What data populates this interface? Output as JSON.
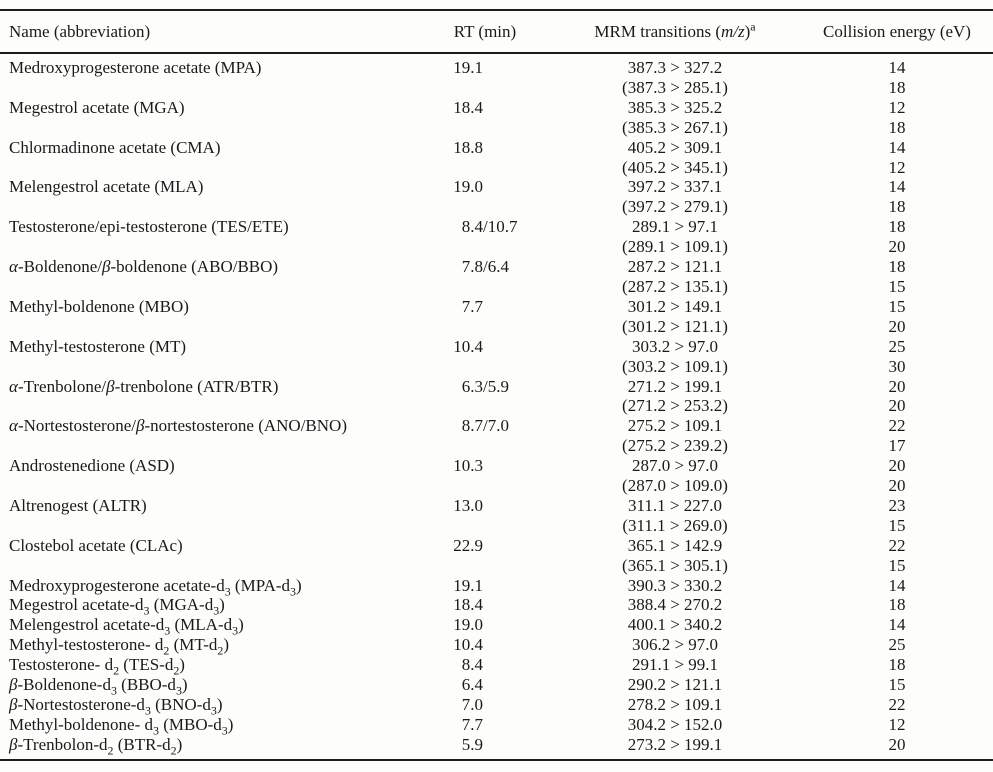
{
  "colors": {
    "background": "#fdfdfc",
    "text": "#1a1a1a",
    "rule": "#1c1c1c"
  },
  "table": {
    "columns": [
      {
        "key": "name",
        "label": "Name (abbreviation)"
      },
      {
        "key": "rt",
        "label": "RT (min)"
      },
      {
        "key": "mrm",
        "label": "MRM transitions (m/z)^a"
      },
      {
        "key": "ce",
        "label": "Collision energy (eV)"
      }
    ],
    "rows": [
      {
        "name": "Medroxyprogesterone acetate (MPA)",
        "rt": "19.1",
        "mrm": [
          "387.3 > 327.2",
          "(387.3 > 285.1)"
        ],
        "ce": [
          "14",
          "18"
        ]
      },
      {
        "name": "Megestrol acetate (MGA)",
        "rt": "18.4",
        "mrm": [
          "385.3 > 325.2",
          "(385.3 > 267.1)"
        ],
        "ce": [
          "12",
          "18"
        ]
      },
      {
        "name": "Chlormadinone acetate (CMA)",
        "rt": "18.8",
        "mrm": [
          "405.2 > 309.1",
          "(405.2 > 345.1)"
        ],
        "ce": [
          "14",
          "12"
        ]
      },
      {
        "name": "Melengestrol acetate (MLA)",
        "rt": "19.0",
        "mrm": [
          "397.2 > 337.1",
          "(397.2 > 279.1)"
        ],
        "ce": [
          "14",
          "18"
        ]
      },
      {
        "name": "Testosterone/epi-testosterone (TES/ETE)",
        "rt": "8.4/10.7",
        "mrm": [
          "289.1 > 97.1",
          "(289.1 > 109.1)"
        ],
        "ce": [
          "18",
          "20"
        ]
      },
      {
        "name": "α-Boldenone/β-boldenone (ABO/BBO)",
        "rt": "7.8/6.4",
        "mrm": [
          "287.2 > 121.1",
          "(287.2 > 135.1)"
        ],
        "ce": [
          "18",
          "15"
        ]
      },
      {
        "name": "Methyl-boldenone (MBO)",
        "rt": "7.7",
        "mrm": [
          "301.2 > 149.1",
          "(301.2 > 121.1)"
        ],
        "ce": [
          "15",
          "20"
        ]
      },
      {
        "name": "Methyl-testosterone (MT)",
        "rt": "10.4",
        "mrm": [
          "303.2 > 97.0",
          "(303.2 > 109.1)"
        ],
        "ce": [
          "25",
          "30"
        ]
      },
      {
        "name": "α-Trenbolone/β-trenbolone (ATR/BTR)",
        "rt": "6.3/5.9",
        "mrm": [
          "271.2 > 199.1",
          "(271.2 > 253.2)"
        ],
        "ce": [
          "20",
          "20"
        ]
      },
      {
        "name": "α-Nortestosterone/β-nortestosterone (ANO/BNO)",
        "rt": "8.7/7.0",
        "mrm": [
          "275.2 > 109.1",
          "(275.2 > 239.2)"
        ],
        "ce": [
          "22",
          "17"
        ]
      },
      {
        "name": "Androstenedione (ASD)",
        "rt": "10.3",
        "mrm": [
          "287.0 > 97.0",
          "(287.0 > 109.0)"
        ],
        "ce": [
          "20",
          "20"
        ]
      },
      {
        "name": "Altrenogest (ALTR)",
        "rt": "13.0",
        "mrm": [
          "311.1 > 227.0",
          "(311.1 > 269.0)"
        ],
        "ce": [
          "23",
          "15"
        ]
      },
      {
        "name": "Clostebol acetate (CLAc)",
        "rt": "22.9",
        "mrm": [
          "365.1 > 142.9",
          "(365.1 > 305.1)"
        ],
        "ce": [
          "22",
          "15"
        ]
      },
      {
        "name": "Medroxyprogesterone acetate-d₃ (MPA-d₃)",
        "rt": "19.1",
        "mrm": [
          "390.3 > 330.2"
        ],
        "ce": [
          "14"
        ]
      },
      {
        "name": "Megestrol acetate-d₃ (MGA-d₃)",
        "rt": "18.4",
        "mrm": [
          "388.4 > 270.2"
        ],
        "ce": [
          "18"
        ]
      },
      {
        "name": "Melengestrol acetate-d₃ (MLA-d₃)",
        "rt": "19.0",
        "mrm": [
          "400.1 > 340.2"
        ],
        "ce": [
          "14"
        ]
      },
      {
        "name": "Methyl-testosterone- d₂ (MT-d₂)",
        "rt": "10.4",
        "mrm": [
          "306.2 > 97.0"
        ],
        "ce": [
          "25"
        ]
      },
      {
        "name": "Testosterone- d₂ (TES-d₂)",
        "rt": "8.4",
        "mrm": [
          "291.1 > 99.1"
        ],
        "ce": [
          "18"
        ]
      },
      {
        "name": "β-Boldenone-d₃ (BBO-d₃)",
        "rt": "6.4",
        "mrm": [
          "290.2 > 121.1"
        ],
        "ce": [
          "15"
        ]
      },
      {
        "name": "β-Nortestosterone-d₃ (BNO-d₃)",
        "rt": "7.0",
        "mrm": [
          "278.2 > 109.1"
        ],
        "ce": [
          "22"
        ]
      },
      {
        "name": "Methyl-boldenone- d₃ (MBO-d₃)",
        "rt": "7.7",
        "mrm": [
          "304.2 > 152.0"
        ],
        "ce": [
          "12"
        ]
      },
      {
        "name": "β-Trenbolon-d₂ (BTR-d₂)",
        "rt": "5.9",
        "mrm": [
          "273.2 > 199.1"
        ],
        "ce": [
          "20"
        ]
      }
    ]
  }
}
